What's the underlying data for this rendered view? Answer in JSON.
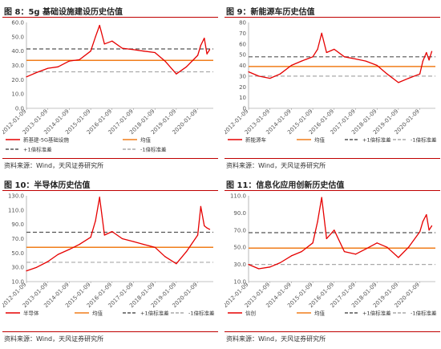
{
  "colors": {
    "series": "#e60000",
    "mean": "#f07d1a",
    "band": "#999999",
    "rule": "#c00000"
  },
  "panels": [
    {
      "title": "图 8：5g 基础设施建设历史估值",
      "source": "资料来源：Wind，天风证券研究所"
    },
    {
      "title": "图 9：新能源车历史估值",
      "source": "资料来源：Wind，天风证券研究所"
    },
    {
      "title": "图 10：半导体历史估值",
      "source": "资料来源：Wind，天风证券研究所"
    },
    {
      "title": "图 11：信息化应用创新历史估值",
      "source": "资料来源：Wind，天风证券研究所"
    }
  ],
  "chart_data": [
    {
      "type": "line",
      "title": "图 8：5g 基础设施建设历史估值",
      "x_ticks": [
        "2012-01-09",
        "2013-01-09",
        "2014-01-09",
        "2015-01-09",
        "2016-01-09",
        "2017-01-09",
        "2018-01-09",
        "2019-01-09",
        "2020-01-09"
      ],
      "y_ticks": [
        "0.0",
        "10.0",
        "20.0",
        "30.0",
        "40.0",
        "50.0",
        "60.0"
      ],
      "ylim": [
        0,
        60
      ],
      "x": [
        "2012-01-09",
        "2012-07-01",
        "2013-01-09",
        "2013-07-01",
        "2014-01-09",
        "2014-07-01",
        "2015-01-09",
        "2015-04-01",
        "2015-06-10",
        "2015-09-01",
        "2016-01-09",
        "2016-07-01",
        "2017-01-09",
        "2017-07-01",
        "2018-01-09",
        "2018-07-01",
        "2019-01-09",
        "2019-07-01",
        "2020-01-09",
        "2020-03-01",
        "2020-05-01",
        "2020-06-15",
        "2020-08-01"
      ],
      "series": [
        {
          "name": "新基建-5G基础设施",
          "values": [
            22,
            25,
            28,
            29,
            33,
            34,
            40,
            50,
            58,
            45,
            47,
            42,
            41,
            40,
            39,
            33,
            24,
            29,
            37,
            44,
            49,
            38,
            41
          ]
        }
      ],
      "mean": 33.5,
      "plus1sd": 41.5,
      "minus1sd": 25.5,
      "legend": [
        "新基建-5G基础设施",
        "均值",
        "+1倍标准差",
        "-1倍标准差"
      ]
    },
    {
      "type": "line",
      "title": "图 9：新能源车历史估值",
      "x_ticks": [
        "2012-01-09",
        "2013-01-09",
        "2014-01-09",
        "2015-01-09",
        "2016-01-09",
        "2017-01-09",
        "2018-01-09",
        "2019-01-09",
        "2020-01-09"
      ],
      "y_ticks": [
        "0",
        "10",
        "20",
        "30",
        "40",
        "50",
        "60",
        "70",
        "80"
      ],
      "ylim": [
        0,
        80
      ],
      "x": [
        "2012-01-09",
        "2012-07-01",
        "2013-01-09",
        "2013-07-01",
        "2014-01-09",
        "2014-07-01",
        "2015-01-09",
        "2015-04-01",
        "2015-06-10",
        "2015-09-01",
        "2016-01-09",
        "2016-07-01",
        "2017-01-09",
        "2017-07-01",
        "2018-01-09",
        "2018-07-01",
        "2019-01-09",
        "2019-07-01",
        "2020-01-09",
        "2020-03-01",
        "2020-05-01",
        "2020-06-15",
        "2020-08-01"
      ],
      "series": [
        {
          "name": "新能源车",
          "values": [
            34,
            30,
            28,
            32,
            40,
            44,
            48,
            55,
            70,
            52,
            55,
            48,
            46,
            44,
            40,
            32,
            24,
            28,
            32,
            44,
            52,
            45,
            53
          ]
        }
      ],
      "mean": 39,
      "plus1sd": 48,
      "minus1sd": 30,
      "legend": [
        "新能源车",
        "均值",
        "+1倍标准差",
        "-1倍标准差"
      ]
    },
    {
      "type": "line",
      "title": "图 10：半导体历史估值",
      "x_ticks": [
        "2012-01-09",
        "2013-01-09",
        "2014-01-09",
        "2015-01-09",
        "2016-01-09",
        "2017-01-09",
        "2018-01-09",
        "2019-01-09",
        "2020-01-09"
      ],
      "y_ticks": [
        "10.0",
        "30.0",
        "50.0",
        "70.0",
        "90.0",
        "110.0",
        "130.0"
      ],
      "ylim": [
        10,
        130
      ],
      "x": [
        "2012-01-09",
        "2012-07-01",
        "2013-01-09",
        "2013-07-01",
        "2014-01-09",
        "2014-07-01",
        "2015-01-09",
        "2015-04-01",
        "2015-06-10",
        "2015-09-01",
        "2016-01-09",
        "2016-07-01",
        "2017-01-09",
        "2017-07-01",
        "2018-01-09",
        "2018-07-01",
        "2019-01-09",
        "2019-07-01",
        "2020-01-09",
        "2020-03-01",
        "2020-05-01",
        "2020-06-15",
        "2020-08-01"
      ],
      "series": [
        {
          "name": "半导体",
          "values": [
            25,
            30,
            38,
            48,
            55,
            62,
            72,
            95,
            128,
            75,
            80,
            70,
            66,
            62,
            58,
            45,
            35,
            52,
            75,
            115,
            88,
            85,
            83
          ]
        }
      ],
      "mean": 58,
      "plus1sd": 79,
      "minus1sd": 37,
      "legend": [
        "半导体",
        "均值",
        "+1倍标准差",
        "-1倍标准差"
      ]
    },
    {
      "type": "line",
      "title": "图 11：信息化应用创新历史估值",
      "x_ticks": [
        "2012-01-09",
        "2013-01-09",
        "2014-01-09",
        "2015-01-09",
        "2016-01-09",
        "2017-01-09",
        "2018-01-09",
        "2019-01-09",
        "2020-01-09"
      ],
      "y_ticks": [
        "10.0",
        "30.0",
        "50.0",
        "70.0",
        "90.0",
        "110.0"
      ],
      "ylim": [
        10,
        110
      ],
      "x": [
        "2012-01-09",
        "2012-07-01",
        "2013-01-09",
        "2013-07-01",
        "2014-01-09",
        "2014-07-01",
        "2015-01-09",
        "2015-04-01",
        "2015-06-10",
        "2015-09-01",
        "2016-01-09",
        "2016-07-01",
        "2017-01-09",
        "2017-07-01",
        "2018-01-09",
        "2018-07-01",
        "2019-01-09",
        "2019-07-01",
        "2020-01-09",
        "2020-03-01",
        "2020-05-01",
        "2020-06-15",
        "2020-08-01"
      ],
      "series": [
        {
          "name": "信创",
          "values": [
            30,
            25,
            27,
            32,
            40,
            45,
            55,
            80,
            108,
            60,
            70,
            45,
            42,
            48,
            55,
            50,
            38,
            50,
            68,
            80,
            88,
            70,
            75
          ]
        }
      ],
      "mean": 49,
      "plus1sd": 67,
      "minus1sd": 30,
      "legend": [
        "信创",
        "均值",
        "+1倍标准差",
        "-1倍标准差"
      ]
    }
  ]
}
